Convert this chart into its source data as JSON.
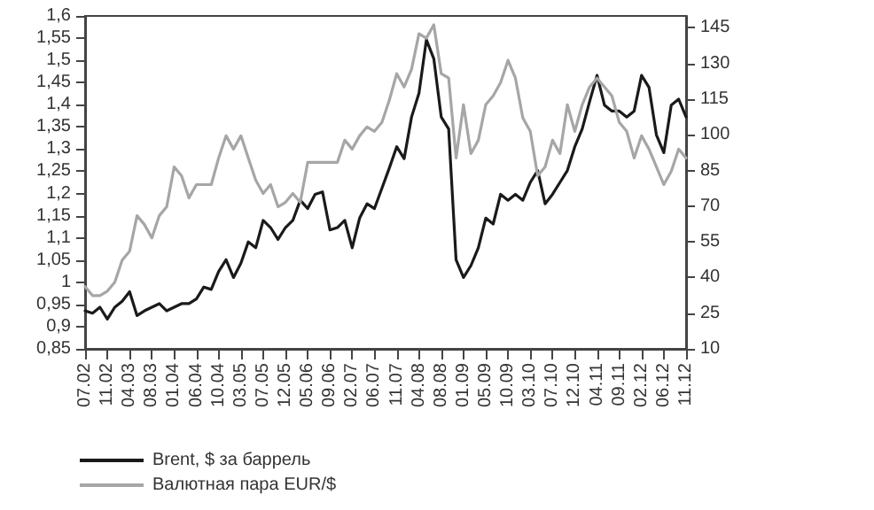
{
  "chart_data": {
    "type": "line",
    "categories": [
      "07.02",
      null,
      null,
      "11.02",
      null,
      null,
      "04.03",
      null,
      null,
      "08.03",
      null,
      null,
      "01.04",
      null,
      null,
      "06.04",
      null,
      null,
      "10.04",
      null,
      null,
      "03.05",
      null,
      null,
      "07.05",
      null,
      null,
      "12.05",
      null,
      null,
      "05.06",
      null,
      null,
      "09.06",
      null,
      null,
      "02.07",
      null,
      null,
      "06.07",
      null,
      null,
      "11.07",
      null,
      null,
      "04.08",
      null,
      null,
      "08.08",
      null,
      null,
      "01.09",
      null,
      null,
      "05.09",
      null,
      null,
      "10.09",
      null,
      null,
      "03.10",
      null,
      null,
      "07.10",
      null,
      null,
      "12.10",
      null,
      null,
      "04.11",
      null,
      null,
      "09.11",
      null,
      null,
      "02.12",
      null,
      null,
      "06.12",
      null,
      null,
      "11.12"
    ],
    "series": [
      {
        "name": "Brent, $ за баррель",
        "color": "#1a1a1a",
        "axis": "y2",
        "values": [
          26,
          25,
          27.5,
          22.5,
          27.5,
          30,
          34,
          24,
          26,
          27.5,
          29,
          26,
          27.5,
          29,
          29,
          31,
          36,
          35,
          42.5,
          47.5,
          40,
          46,
          55,
          52.5,
          64,
          61,
          56,
          61,
          64,
          72.5,
          69,
          75,
          76,
          60,
          61,
          64,
          52.5,
          65,
          71,
          69,
          77.5,
          86,
          95,
          90,
          107.5,
          117.5,
          140,
          132,
          107.5,
          102.5,
          47.5,
          40,
          45,
          52.5,
          65,
          62.5,
          75,
          72.5,
          75,
          72.5,
          80,
          85,
          71,
          75,
          80,
          85,
          95,
          102.5,
          114,
          125,
          112.5,
          110,
          110,
          107.5,
          110,
          125,
          120,
          100,
          92.5,
          112.5,
          115,
          107.5
        ]
      },
      {
        "name": "Валютная пара EUR/$",
        "color": "#a6a6a6",
        "values": [
          0.99,
          0.97,
          0.97,
          0.98,
          1.0,
          1.05,
          1.07,
          1.15,
          1.13,
          1.1,
          1.15,
          1.17,
          1.26,
          1.24,
          1.19,
          1.22,
          1.22,
          1.22,
          1.28,
          1.33,
          1.3,
          1.33,
          1.28,
          1.23,
          1.2,
          1.22,
          1.17,
          1.18,
          1.2,
          1.18,
          1.27,
          1.27,
          1.27,
          1.27,
          1.27,
          1.32,
          1.3,
          1.33,
          1.35,
          1.34,
          1.36,
          1.41,
          1.47,
          1.44,
          1.48,
          1.56,
          1.55,
          1.58,
          1.47,
          1.46,
          1.28,
          1.4,
          1.29,
          1.32,
          1.4,
          1.42,
          1.45,
          1.5,
          1.46,
          1.37,
          1.34,
          1.24,
          1.26,
          1.32,
          1.29,
          1.4,
          1.34,
          1.4,
          1.44,
          1.46,
          1.44,
          1.42,
          1.36,
          1.34,
          1.28,
          1.33,
          1.3,
          1.26,
          1.22,
          1.25,
          1.3,
          1.28
        ]
      }
    ],
    "ylim": [
      0.85,
      1.6
    ],
    "yticks": [
      {
        "value": 0.85,
        "label": "0,85"
      },
      {
        "value": 0.9,
        "label": "0,9"
      },
      {
        "value": 0.95,
        "label": "0,95"
      },
      1,
      {
        "value": 1.05,
        "label": "1,05"
      },
      {
        "value": 1.1,
        "label": "1,1"
      },
      {
        "value": 1.15,
        "label": "1,15"
      },
      {
        "value": 1.2,
        "label": "1,2"
      },
      {
        "value": 1.25,
        "label": "1,25"
      },
      {
        "value": 1.3,
        "label": "1,3"
      },
      {
        "value": 1.35,
        "label": "1,35"
      },
      {
        "value": 1.4,
        "label": "1,4"
      },
      {
        "value": 1.45,
        "label": "1,45"
      },
      {
        "value": 1.5,
        "label": "1,5"
      },
      {
        "value": 1.55,
        "label": "1,55"
      },
      {
        "value": 1.6,
        "label": "1,6"
      }
    ],
    "y2lim": [
      10,
      150
    ],
    "y2ticks": [
      10,
      25,
      40,
      55,
      70,
      85,
      100,
      115,
      130,
      145
    ],
    "grid": false,
    "legend": "bottom left",
    "marker": "none",
    "line_style": "solid"
  }
}
